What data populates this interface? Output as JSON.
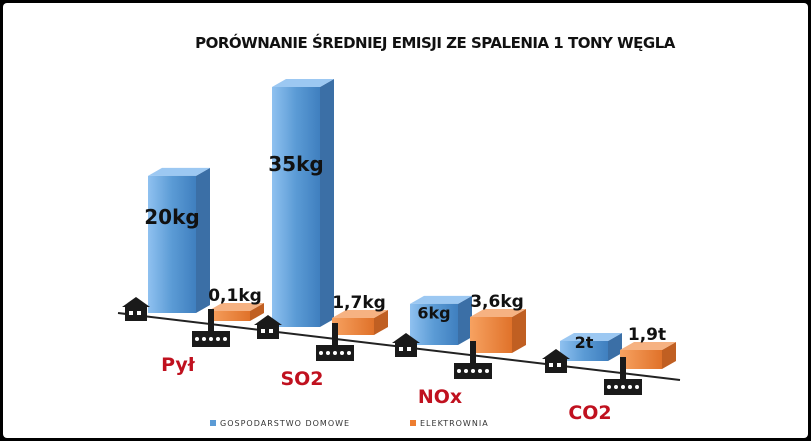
{
  "chart_data": {
    "type": "bar",
    "title": "PORÓWNANIE ŚREDNIEJ EMISJI ZE SPALENIA 1 TONY WĘGLA",
    "categories": [
      "Pył",
      "SO2",
      "NOx",
      "CO2"
    ],
    "series": [
      {
        "name": "GOSPODARSTWO DOMOWE",
        "color": "#5b9bd5",
        "values": [
          20,
          35,
          6,
          2
        ],
        "labels": [
          "20kg",
          "35kg",
          "6kg",
          "2t"
        ]
      },
      {
        "name": "ELEKTROWNIA",
        "color": "#ed7d31",
        "values": [
          0.1,
          1.7,
          3.6,
          1.9
        ],
        "labels": [
          "0,1kg",
          "1,7kg",
          "3,6kg",
          "1,9t"
        ]
      }
    ],
    "legend_position": "bottom"
  },
  "colors": {
    "background": "#000000",
    "panel": "#ffffff",
    "category_label": "#c0111f"
  },
  "icons": [
    "house-icon",
    "power-plant-icon"
  ]
}
